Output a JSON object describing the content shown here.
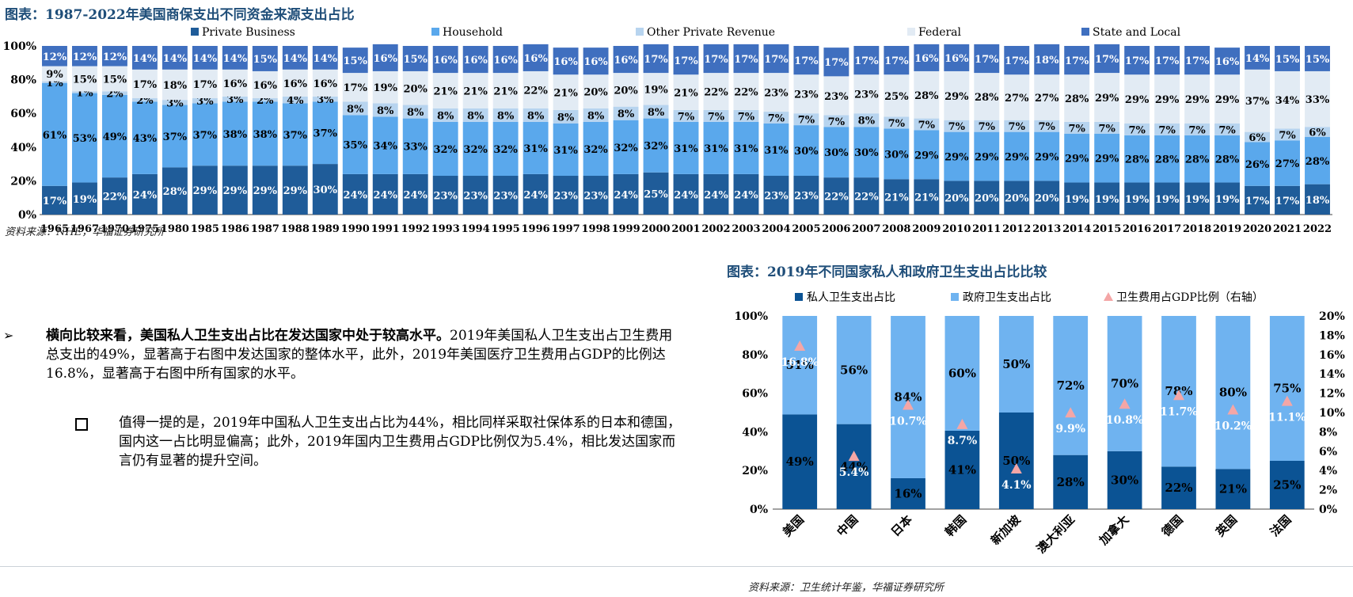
{
  "colors": {
    "title": "#1f4e79",
    "private_business": "#1f5c99",
    "household": "#5aa8ec",
    "other_private": "#b7d4ef",
    "federal": "#e2ebf4",
    "state_local": "#3f6fbf",
    "pos_private": "#0b5394",
    "pos_gov": "#6fb3f0",
    "gdp_marker": "#f4a6a6"
  },
  "top": {
    "title": "图表：1987-2022年美国商保支出不同资金来源支出占比",
    "source": "资料来源：NHE，华福证券研究所"
  },
  "bottom": {
    "title": "图表：2019年不同国家私人和政府卫生支出占比比较",
    "source": "资料来源：卫生统计年鉴，华福证券研究所"
  },
  "text": {
    "bullet_symbol": "➢",
    "p1_bold": "横向比较来看，美国私人卫生支出占比在发达国家中处于较高水平。",
    "p1_rest": "2019年美国私人卫生支出占卫生费用总支出的49%，显著高于右图中发达国家的整体水平，此外，2019年美国医疗卫生费用占GDP的比例达16.8%，显著高于右图中所有国家的水平。",
    "p2": "值得一提的是，2019年中国私人卫生支出占比为44%，相比同样采取社保体系的日本和德国，国内这一占比明显偏高；此外，2019年国内卫生费用占GDP比例仅为5.4%，相比发达国家而言仍有显著的提升空间。"
  },
  "chart_data": [
    {
      "type": "bar",
      "stacked": true,
      "categories": [
        "1965",
        "1967",
        "1970",
        "1975",
        "1980",
        "1985",
        "1986",
        "1987",
        "1988",
        "1989",
        "1990",
        "1991",
        "1992",
        "1993",
        "1994",
        "1995",
        "1996",
        "1997",
        "1998",
        "1999",
        "2000",
        "2001",
        "2002",
        "2003",
        "2004",
        "2005",
        "2006",
        "2007",
        "2008",
        "2009",
        "2010",
        "2011",
        "2012",
        "2013",
        "2014",
        "2015",
        "2016",
        "2017",
        "2018",
        "2019",
        "2020",
        "2021",
        "2022"
      ],
      "ylim": [
        0,
        100
      ],
      "yticks": [
        "0%",
        "20%",
        "40%",
        "60%",
        "80%",
        "100%"
      ],
      "legend_position": "top",
      "series": [
        {
          "name": "Private Business",
          "color_key": "private_business",
          "label_color": "#ffffff",
          "values": [
            17,
            19,
            22,
            24,
            28,
            29,
            29,
            29,
            29,
            30,
            24,
            24,
            24,
            23,
            23,
            23,
            24,
            23,
            23,
            24,
            25,
            24,
            24,
            24,
            23,
            23,
            22,
            22,
            21,
            21,
            20,
            20,
            20,
            20,
            19,
            19,
            19,
            19,
            19,
            19,
            17,
            17,
            18
          ]
        },
        {
          "name": "Household",
          "color_key": "household",
          "label_color": "#000000",
          "values": [
            61,
            53,
            49,
            43,
            37,
            37,
            38,
            38,
            37,
            37,
            35,
            34,
            33,
            32,
            32,
            32,
            31,
            31,
            32,
            32,
            32,
            31,
            31,
            31,
            31,
            30,
            30,
            30,
            30,
            29,
            29,
            29,
            29,
            29,
            29,
            29,
            28,
            28,
            28,
            28,
            26,
            27,
            28
          ]
        },
        {
          "name": "Other Private Revenue",
          "color_key": "other_private",
          "label_color": "#000000",
          "values": [
            1,
            1,
            2,
            2,
            3,
            3,
            3,
            2,
            4,
            3,
            8,
            8,
            8,
            8,
            8,
            8,
            8,
            8,
            8,
            8,
            8,
            7,
            7,
            7,
            7,
            7,
            7,
            8,
            7,
            7,
            7,
            7,
            7,
            7,
            7,
            7,
            7,
            7,
            7,
            7,
            6,
            7,
            6
          ]
        },
        {
          "name": "Federal",
          "color_key": "federal",
          "label_color": "#000000",
          "values": [
            9,
            15,
            15,
            17,
            18,
            17,
            16,
            16,
            16,
            16,
            17,
            19,
            20,
            21,
            21,
            21,
            22,
            21,
            20,
            20,
            19,
            21,
            22,
            22,
            23,
            23,
            23,
            23,
            25,
            28,
            29,
            28,
            27,
            27,
            28,
            29,
            29,
            29,
            29,
            29,
            37,
            34,
            33
          ]
        },
        {
          "name": "State and Local",
          "color_key": "state_local",
          "label_color": "#ffffff",
          "values": [
            12,
            12,
            12,
            14,
            14,
            14,
            14,
            15,
            14,
            14,
            15,
            16,
            15,
            16,
            16,
            16,
            16,
            16,
            16,
            16,
            17,
            17,
            17,
            17,
            17,
            17,
            17,
            17,
            17,
            16,
            16,
            17,
            17,
            18,
            17,
            17,
            17,
            17,
            17,
            16,
            14,
            15,
            15
          ]
        }
      ]
    },
    {
      "type": "bar",
      "stacked": true,
      "categories": [
        "美国",
        "中国",
        "日本",
        "韩国",
        "新加坡",
        "澳大利亚",
        "加拿大",
        "德国",
        "英国",
        "法国"
      ],
      "ylim": [
        0,
        100
      ],
      "y2lim": [
        0,
        20
      ],
      "yticks": [
        "0%",
        "20%",
        "40%",
        "60%",
        "80%",
        "100%"
      ],
      "y2ticks": [
        "0%",
        "2%",
        "4%",
        "6%",
        "8%",
        "10%",
        "12%",
        "14%",
        "16%",
        "18%",
        "20%"
      ],
      "legend_position": "top",
      "series": [
        {
          "name": "私人卫生支出占比",
          "color_key": "pos_private",
          "values": [
            49,
            44,
            16,
            41,
            50,
            28,
            30,
            22,
            21,
            25
          ]
        },
        {
          "name": "政府卫生支出占比",
          "color_key": "pos_gov",
          "values": [
            51,
            56,
            84,
            60,
            50,
            72,
            70,
            78,
            80,
            75
          ]
        },
        {
          "name": "卫生费用占GDP比例（右轴）",
          "color_key": "gdp_marker",
          "axis": "right",
          "values": [
            "16.8%",
            "5.4%",
            "10.7%",
            "8.7%",
            "4.1%",
            "9.9%",
            "10.8%",
            "11.7%",
            "10.2%",
            "11.1%"
          ]
        }
      ]
    }
  ]
}
